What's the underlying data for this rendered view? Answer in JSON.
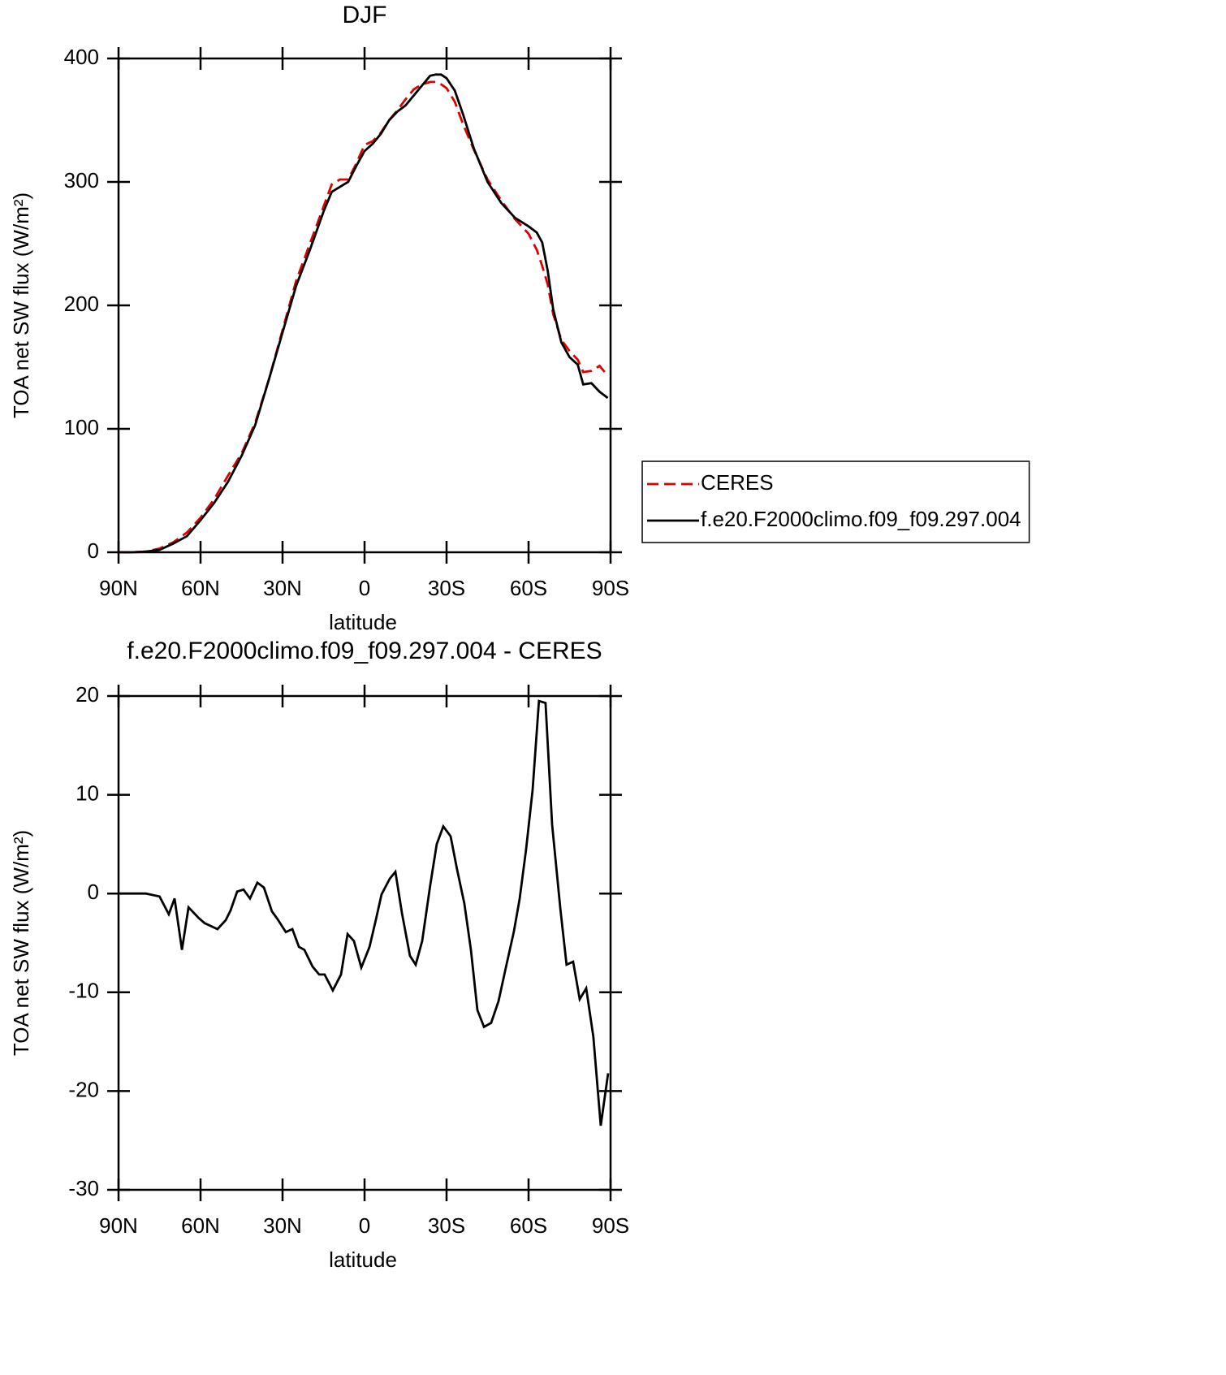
{
  "chart_data": [
    {
      "type": "line",
      "title": "DJF",
      "xlabel": "latitude",
      "ylabel": "TOA net SW flux (W/m²)",
      "x": [
        90,
        85,
        80,
        75,
        70,
        65,
        60,
        55,
        50,
        45,
        40,
        35,
        30,
        25,
        20,
        15,
        12,
        9,
        6,
        3,
        0,
        -3,
        -6,
        -9,
        -12,
        -15,
        -18,
        -21,
        -24,
        -26,
        -28,
        -30,
        -33,
        -36,
        -40,
        -45,
        -50,
        -55,
        -60,
        -63,
        -65,
        -67,
        -69,
        -72,
        -75,
        -78,
        -80,
        -83,
        -86,
        -89
      ],
      "series": [
        {
          "name": "CERES",
          "color": "#e00000",
          "dash": true,
          "values": [
            0,
            0,
            0.5,
            3,
            8,
            16,
            28,
            43,
            62,
            80,
            105,
            140,
            180,
            220,
            250,
            280,
            298,
            302,
            302,
            315,
            330,
            333,
            340,
            350,
            358,
            367,
            375,
            379,
            381,
            381,
            379,
            376,
            365,
            347,
            326,
            302,
            285,
            270,
            258,
            245,
            232,
            217,
            193,
            172,
            163,
            156,
            146,
            147,
            151,
            143
          ]
        },
        {
          "name": "f.e20.F2000climo.f09_f09.297.004",
          "color": "#000000",
          "dash": false,
          "values": [
            0,
            0,
            0.5,
            2,
            7,
            13,
            26,
            40,
            57,
            78,
            103,
            140,
            178,
            216,
            245,
            276,
            292,
            296,
            300,
            313,
            325,
            331,
            339,
            350,
            357,
            362,
            370,
            378,
            386,
            387,
            387,
            384,
            374,
            355,
            327,
            300,
            283,
            271,
            264,
            259,
            251,
            228,
            197,
            170,
            158,
            152,
            136,
            137,
            130,
            125
          ]
        }
      ],
      "xlim": [
        90,
        -90
      ],
      "xticks": [
        {
          "value": 90,
          "label": "90N"
        },
        {
          "value": 60,
          "label": "60N"
        },
        {
          "value": 30,
          "label": "30N"
        },
        0,
        {
          "value": -30,
          "label": "30S"
        },
        {
          "value": -60,
          "label": "60S"
        },
        {
          "value": -90,
          "label": "90S"
        }
      ],
      "ylim": [
        0,
        400
      ],
      "yticks": [
        0,
        100,
        200,
        300,
        400
      ],
      "legend": "right"
    },
    {
      "type": "line",
      "title": "f.e20.F2000climo.f09_f09.297.004 - CERES",
      "xlabel": "latitude",
      "ylabel": "TOA net SW flux (W/m²)",
      "x": [
        90,
        80,
        75,
        71.6,
        69.5,
        66.8,
        64.4,
        60.6,
        58.5,
        53.8,
        50.8,
        49,
        46.6,
        44.3,
        41.9,
        39.2,
        36.8,
        33.9,
        31.8,
        28.8,
        26.4,
        24,
        22,
        19,
        16.6,
        14.6,
        11.6,
        8.6,
        6.2,
        3.9,
        1.2,
        -1.8,
        -4.2,
        -6.2,
        -9.2,
        -11.3,
        -13.7,
        -16.6,
        -18.7,
        -21.1,
        -24,
        -26.4,
        -28.8,
        -31.5,
        -33.8,
        -36.5,
        -38.9,
        -41.3,
        -43.7,
        -46.3,
        -49,
        -52,
        -54.6,
        -56.7,
        -59.1,
        -61.5,
        -63.8,
        -66.2,
        -68.6,
        -71.6,
        -73.9,
        -76.3,
        -78.7,
        -81.1,
        -83.7,
        -86.4,
        -89.1
      ],
      "values": [
        0,
        0,
        -0.3,
        -2.1,
        -0.5,
        -5.7,
        -1.4,
        -2.5,
        -3,
        -3.6,
        -2.7,
        -1.7,
        0.2,
        0.4,
        -0.5,
        1.1,
        0.6,
        -1.8,
        -2.6,
        -3.9,
        -3.6,
        -5.4,
        -5.7,
        -7.4,
        -8.2,
        -8.2,
        -9.8,
        -8.2,
        -4.1,
        -4.8,
        -7.5,
        -5.4,
        -2.6,
        -0.1,
        1.5,
        2.2,
        -2,
        -6.3,
        -7.2,
        -4.8,
        0.8,
        5,
        6.8,
        5.8,
        2.5,
        -1,
        -5.7,
        -11.8,
        -13.5,
        -13.1,
        -10.9,
        -7.1,
        -3.9,
        -0.6,
        4.5,
        10.5,
        19.5,
        19.3,
        7,
        -1.5,
        -7.2,
        -6.9,
        -10.7,
        -9.6,
        -14.5,
        -23.5,
        -18.2
      ],
      "color": "#000000",
      "xlim": [
        90,
        -90
      ],
      "xticks": [
        {
          "value": 90,
          "label": "90N"
        },
        {
          "value": 60,
          "label": "60N"
        },
        {
          "value": 30,
          "label": "30N"
        },
        0,
        {
          "value": -30,
          "label": "30S"
        },
        {
          "value": -60,
          "label": "60S"
        },
        {
          "value": -90,
          "label": "90S"
        }
      ],
      "ylim": [
        -30,
        20
      ],
      "yticks": [
        -30,
        -20,
        -10,
        0,
        10,
        20
      ]
    }
  ]
}
